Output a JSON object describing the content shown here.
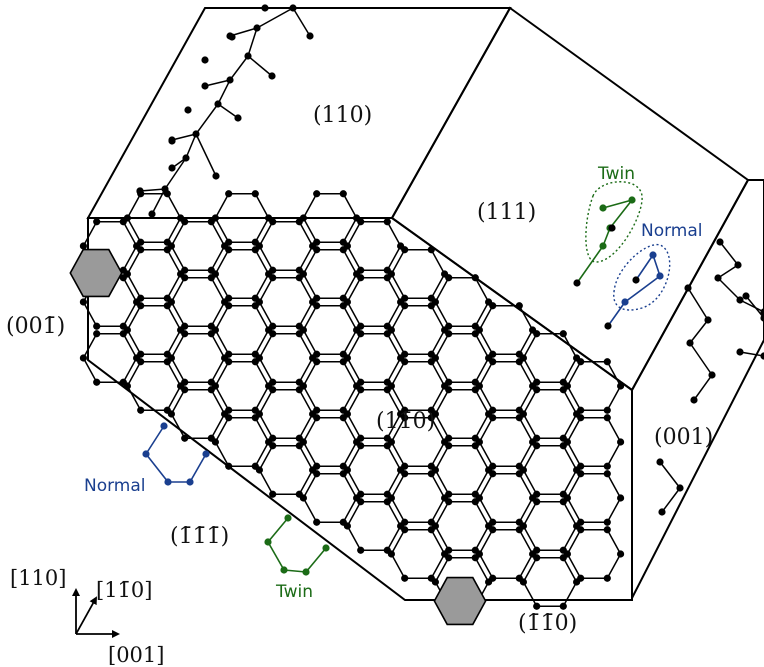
{
  "faces": {
    "f110": "(110)",
    "f111": "(111)",
    "f00_1": "(001̄)",
    "f1_10": "(11̄0)",
    "f001": "(001)",
    "f_1_1_1": "(1̄1̄1̄)",
    "f_1_10": "(1̄1̄0)"
  },
  "callouts": {
    "twin_top": "Twin",
    "normal_top": "Normal",
    "normal_left": "Normal",
    "twin_bottom": "Twin"
  },
  "axes": {
    "up": "[110]",
    "diag": "[11̄0]",
    "right": "[001]"
  },
  "colors": {
    "twin": "#1b6b16",
    "normal": "#1a3f8f",
    "cell_fill": "#9a9a9a",
    "line": "#000000"
  }
}
